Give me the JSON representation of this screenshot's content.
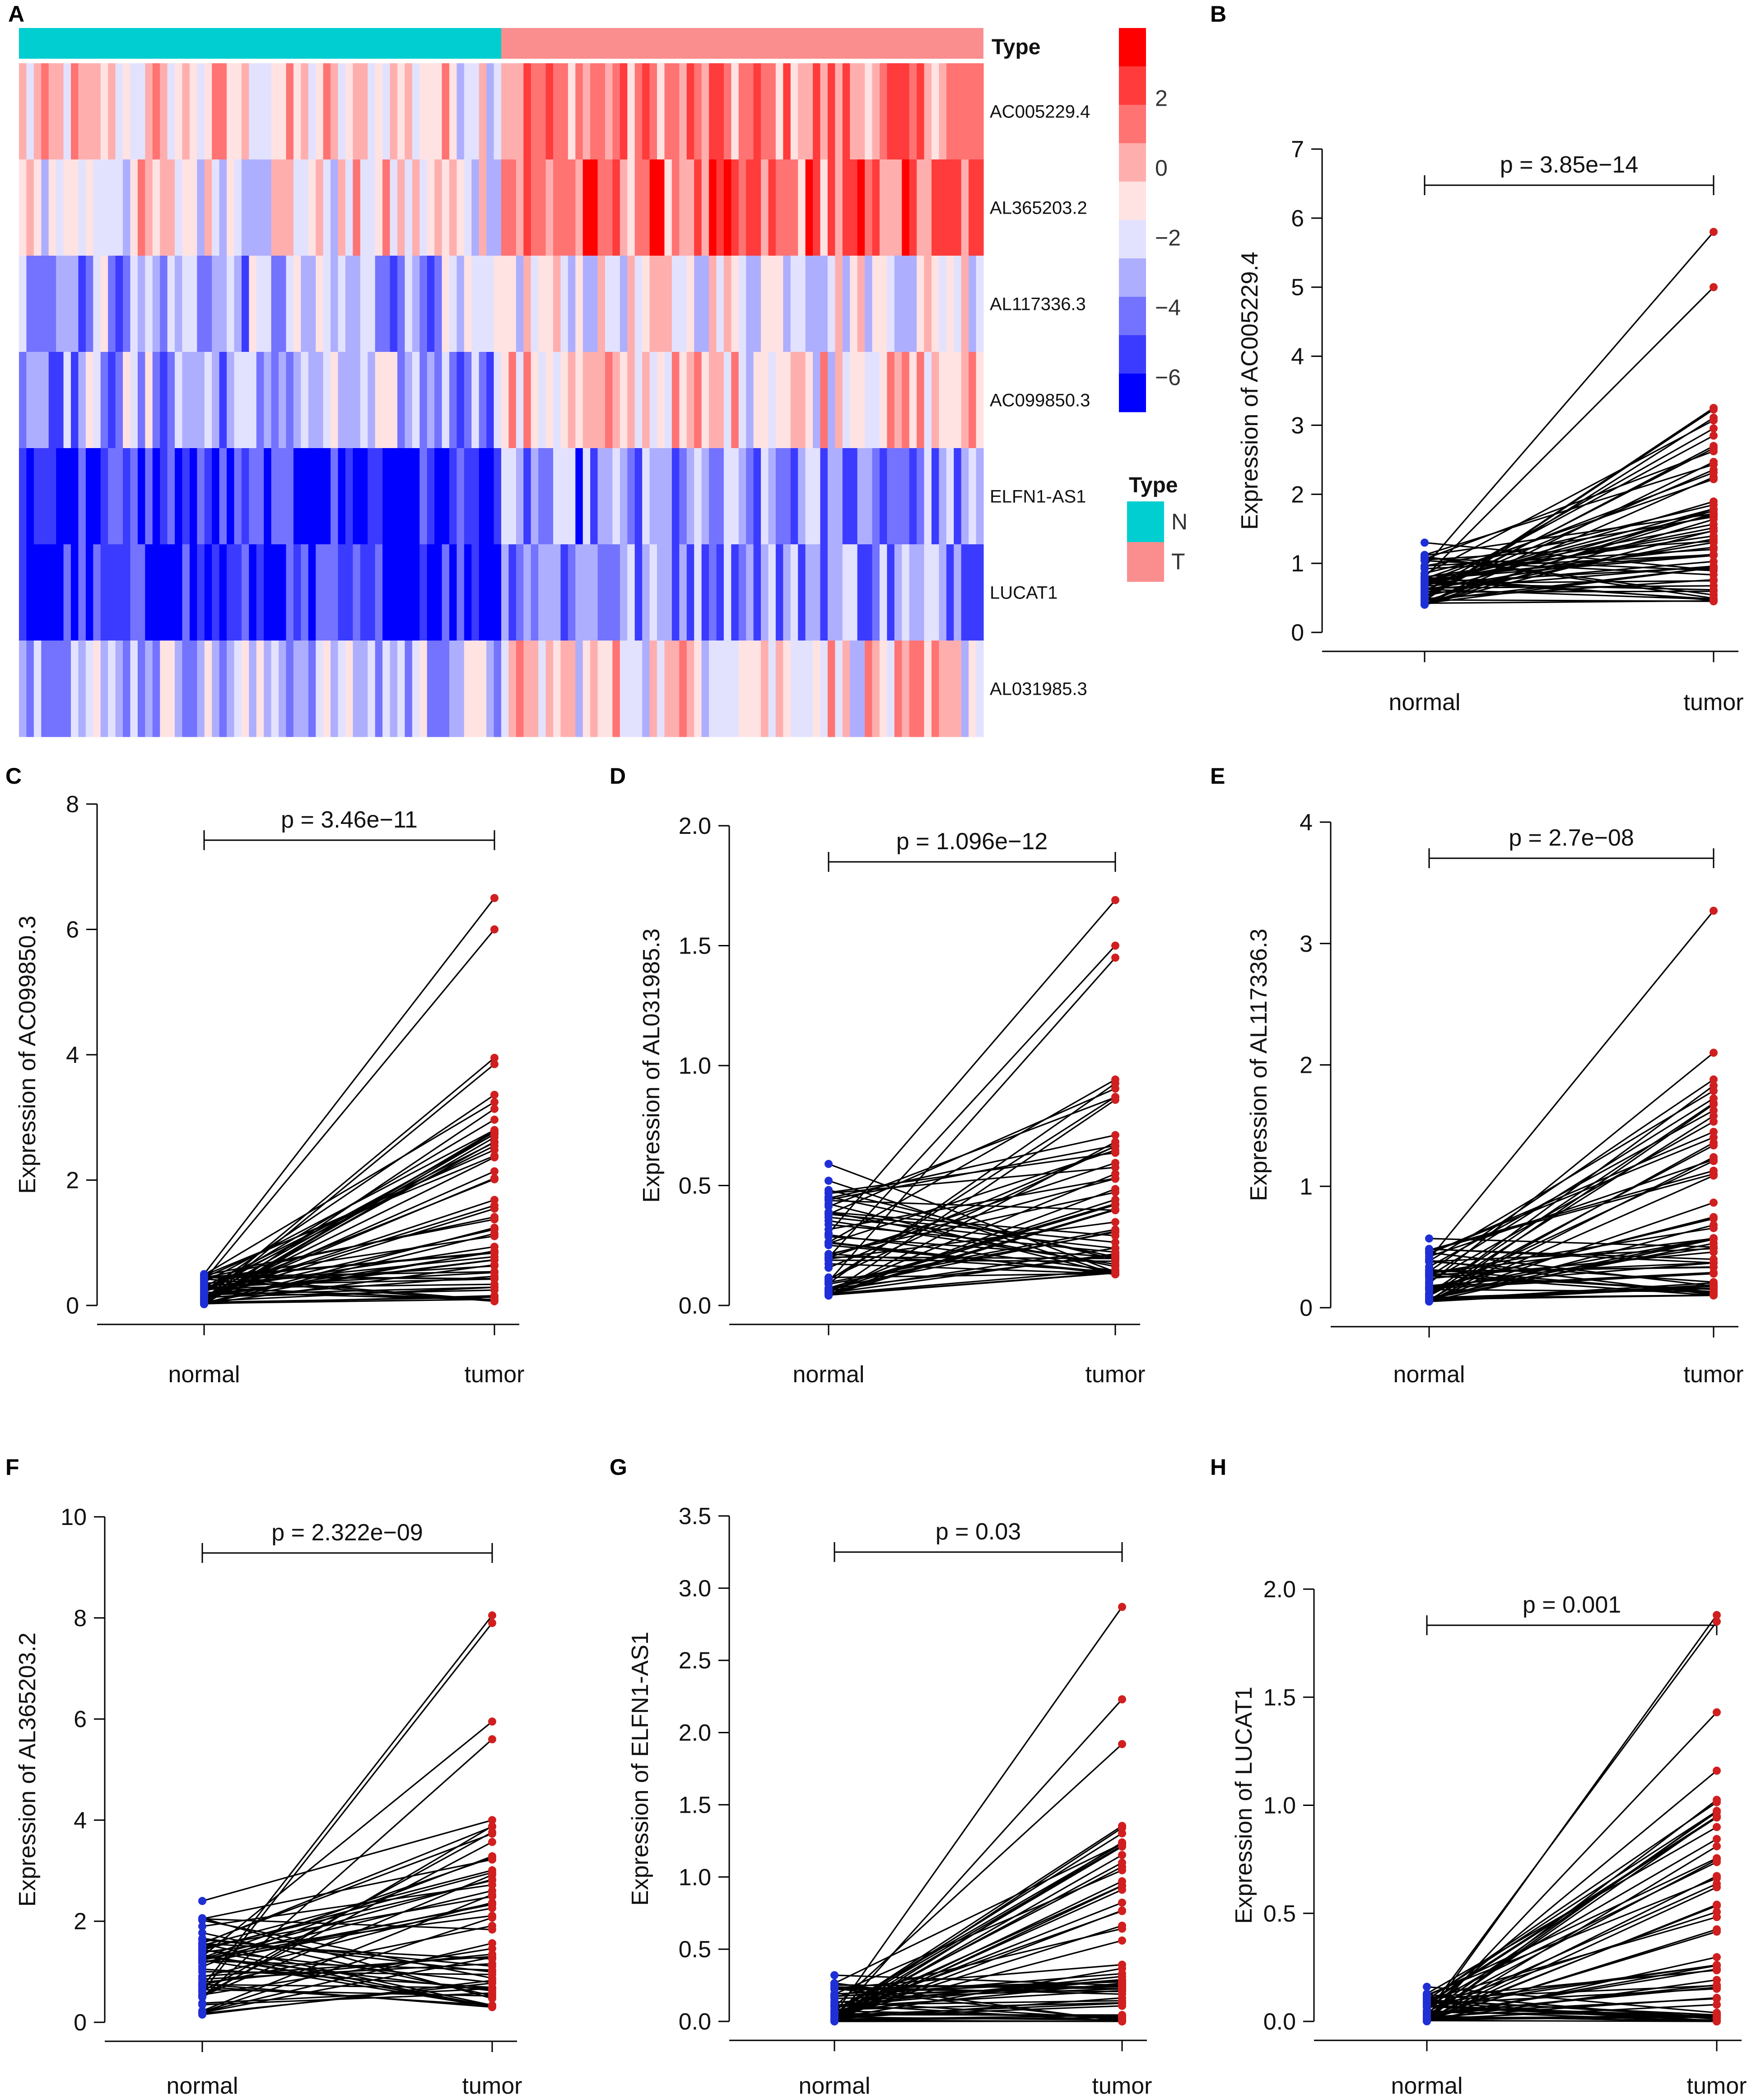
{
  "figure": {
    "heatmap_panel": "A",
    "type_label": "Type",
    "group_labels": [
      "N",
      "T"
    ],
    "group_colors": {
      "N": "#00CED1",
      "T": "#FA8E8E"
    },
    "genes": [
      "AC005229.4",
      "AL365203.2",
      "AL117336.3",
      "AC099850.3",
      "ELFN1-AS1",
      "LUCAT1",
      "AL031985.3"
    ],
    "n_normal": 65,
    "n_tumor": 65,
    "colorbar_ticks": [
      "2",
      "0",
      "−2",
      "−4",
      "−6"
    ],
    "colorbar_range": [
      -7,
      4
    ],
    "colorbar_colors": [
      "#FF0000",
      "#FF3B3B",
      "#FF7373",
      "#FFAEAE",
      "#FFE2E2",
      "#E2E2FF",
      "#AEAEFF",
      "#7373FF",
      "#3B3BFF",
      "#0000FF"
    ],
    "normal_label": "normal",
    "tumor_label": "tumor",
    "normal_color": "#1F2FD6",
    "tumor_color": "#D11F1F"
  },
  "chart_data": [
    {
      "panel": "A",
      "type": "heatmap",
      "title": "",
      "row_labels": [
        "AC005229.4",
        "AL365203.2",
        "AL117336.3",
        "AC099850.3",
        "ELFN1-AS1",
        "LUCAT1",
        "AL031985.3"
      ],
      "column_groups": [
        "N",
        "T"
      ],
      "row_mean_normal": [
        -0.8,
        -1.2,
        -3.0,
        -3.2,
        -5.8,
        -6.0,
        -2.6
      ],
      "row_mean_tumor": [
        0.8,
        1.2,
        -1.4,
        -0.6,
        -4.0,
        -3.5,
        -0.8
      ],
      "value_range": [
        -7,
        4
      ]
    },
    {
      "panel": "B",
      "type": "scatter",
      "ylabel": "Expression of AC005229.4",
      "categories": [
        "normal",
        "tumor"
      ],
      "p_label": "p = 3.85e−14",
      "ylim": [
        0,
        7
      ],
      "yticks": [
        "0",
        "1",
        "2",
        "3",
        "4",
        "5",
        "6",
        "7"
      ],
      "ytick_values": [
        0,
        1,
        2,
        3,
        4,
        5,
        6,
        7
      ],
      "normal_range": [
        0.4,
        1.3
      ],
      "tumor_range": [
        0.45,
        5.8
      ],
      "highlight_pairs": [
        [
          0.95,
          5.8
        ],
        [
          0.8,
          5.0
        ],
        [
          1.3,
          0.9
        ],
        [
          0.6,
          2.85
        ],
        [
          0.5,
          2.7
        ]
      ],
      "n_pairs": 60
    },
    {
      "panel": "C",
      "type": "scatter",
      "ylabel": "Expression of AC099850.3",
      "categories": [
        "normal",
        "tumor"
      ],
      "p_label": "p = 3.46e−11",
      "ylim": [
        0,
        8
      ],
      "yticks": [
        "0",
        "2",
        "4",
        "6",
        "8"
      ],
      "ytick_values": [
        0,
        2,
        4,
        6,
        8
      ],
      "normal_range": [
        0.02,
        0.6
      ],
      "tumor_range": [
        0.05,
        6.5
      ],
      "highlight_pairs": [
        [
          0.5,
          6.5
        ],
        [
          0.4,
          6.0
        ],
        [
          0.1,
          3.95
        ],
        [
          0.05,
          3.85
        ],
        [
          0.3,
          2.6
        ]
      ],
      "n_pairs": 60
    },
    {
      "panel": "D",
      "type": "scatter",
      "ylabel": "Expression of AL031985.3",
      "categories": [
        "normal",
        "tumor"
      ],
      "p_label": "p = 1.096e−12",
      "ylim": [
        0,
        2.0
      ],
      "yticks": [
        "0.0",
        "0.5",
        "1.0",
        "1.5",
        "2.0"
      ],
      "ytick_values": [
        0,
        0.5,
        1.0,
        1.5,
        2.0
      ],
      "normal_range": [
        0.04,
        0.59
      ],
      "tumor_range": [
        0.13,
        1.69
      ],
      "highlight_pairs": [
        [
          0.3,
          1.69
        ],
        [
          0.2,
          1.5
        ],
        [
          0.59,
          0.14
        ],
        [
          0.52,
          0.13
        ],
        [
          0.1,
          1.45
        ]
      ],
      "n_pairs": 60
    },
    {
      "panel": "E",
      "type": "scatter",
      "ylabel": "Expression of AL117336.3",
      "categories": [
        "normal",
        "tumor"
      ],
      "p_label": "p = 2.7e−08",
      "ylim": [
        0,
        4
      ],
      "yticks": [
        "0",
        "1",
        "2",
        "3",
        "4"
      ],
      "ytick_values": [
        0,
        1,
        2,
        3,
        4
      ],
      "normal_range": [
        0.05,
        0.57
      ],
      "tumor_range": [
        0.1,
        3.27
      ],
      "highlight_pairs": [
        [
          0.4,
          3.27
        ],
        [
          0.2,
          2.1
        ],
        [
          0.3,
          1.88
        ],
        [
          0.57,
          0.5
        ],
        [
          0.1,
          1.58
        ]
      ],
      "n_pairs": 60
    },
    {
      "panel": "F",
      "type": "scatter",
      "ylabel": "Expression of AL365203.2",
      "categories": [
        "normal",
        "tumor"
      ],
      "p_label": "p = 2.322e−09",
      "ylim": [
        0,
        10
      ],
      "yticks": [
        "0",
        "2",
        "4",
        "6",
        "8",
        "10"
      ],
      "ytick_values": [
        0,
        2,
        4,
        6,
        8,
        10
      ],
      "normal_range": [
        0.15,
        2.4
      ],
      "tumor_range": [
        0.3,
        8.05
      ],
      "highlight_pairs": [
        [
          0.7,
          8.05
        ],
        [
          0.6,
          7.9
        ],
        [
          2.4,
          4.0
        ],
        [
          1.3,
          5.95
        ],
        [
          0.5,
          5.6
        ]
      ],
      "n_pairs": 60
    },
    {
      "panel": "G",
      "type": "scatter",
      "ylabel": "Expression of ELFN1-AS1",
      "categories": [
        "normal",
        "tumor"
      ],
      "p_label": "p = 0.03",
      "ylim": [
        0,
        3.5
      ],
      "yticks": [
        "0.0",
        "0.5",
        "1.0",
        "1.5",
        "2.0",
        "2.5",
        "3.0",
        "3.5"
      ],
      "ytick_values": [
        0,
        0.5,
        1.0,
        1.5,
        2.0,
        2.5,
        3.0,
        3.5
      ],
      "normal_range": [
        0.0,
        0.32
      ],
      "tumor_range": [
        0.0,
        2.87
      ],
      "highlight_pairs": [
        [
          0.05,
          2.87
        ],
        [
          0.02,
          2.23
        ],
        [
          0.1,
          1.92
        ],
        [
          0.03,
          1.34
        ],
        [
          0.32,
          0.25
        ]
      ],
      "n_pairs": 60
    },
    {
      "panel": "H",
      "type": "scatter",
      "ylabel": "Expression of LUCAT1",
      "categories": [
        "normal",
        "tumor"
      ],
      "p_label": "p = 0.001",
      "ylim": [
        0,
        2.0
      ],
      "yticks": [
        "0.0",
        "0.5",
        "1.0",
        "1.5",
        "2.0"
      ],
      "ytick_values": [
        0,
        0.5,
        1.0,
        1.5,
        2.0
      ],
      "normal_range": [
        0.0,
        0.16
      ],
      "tumor_range": [
        0.0,
        1.88
      ],
      "highlight_pairs": [
        [
          0.02,
          1.88
        ],
        [
          0.04,
          1.85
        ],
        [
          0.01,
          1.43
        ],
        [
          0.16,
          0.04
        ],
        [
          0.05,
          1.16
        ]
      ],
      "n_pairs": 60
    }
  ]
}
